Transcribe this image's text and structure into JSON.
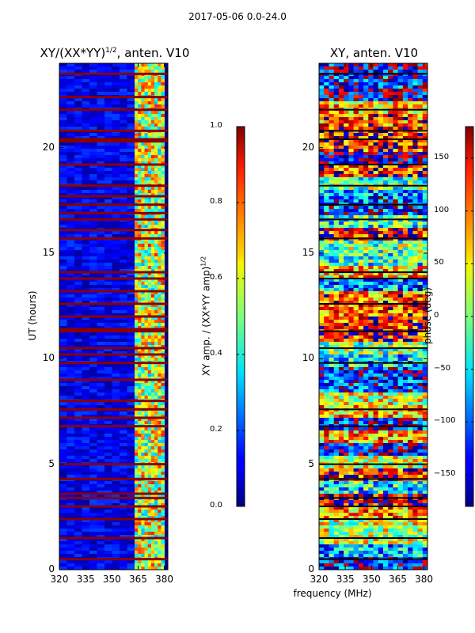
{
  "suptitle": "2017-05-06 0.0-24.0",
  "chart_data": [
    {
      "type": "heatmap",
      "title": "XY/(XX*YY)^1/2, anten. V10",
      "title_main": "XY/(XX*YY)",
      "title_sup": "1/2",
      "title_tail": ", anten. V10",
      "xlabel": "",
      "ylabel": "UT (hours)",
      "xlim": [
        320,
        382
      ],
      "ylim": [
        0,
        24
      ],
      "xticks": [
        "320",
        "335",
        "350",
        "365",
        "380"
      ],
      "xtick_values": [
        320,
        335,
        350,
        365,
        380
      ],
      "yticks": [
        "0",
        "5",
        "10",
        "15",
        "20"
      ],
      "ytick_values": [
        0,
        5,
        10,
        15,
        20
      ],
      "colorbar": {
        "label": "XY amp. / (XX*YY amp)^1/2",
        "label_main": "XY amp. / (XX*YY amp)",
        "label_sup": "1/2",
        "range": [
          0.0,
          1.0
        ],
        "ticks": [
          "0.0",
          "0.2",
          "0.4",
          "0.6",
          "0.8",
          "1.0"
        ],
        "tick_values": [
          0.0,
          0.2,
          0.4,
          0.6,
          0.8,
          1.0
        ]
      },
      "flagged_hours": [
        0.5,
        1.5,
        2.4,
        3.0,
        3.4,
        3.6,
        4.3,
        5.0,
        6.8,
        7.2,
        7.6,
        8.0,
        9.0,
        9.8,
        10.2,
        10.5,
        11.3,
        11.4,
        12.0,
        12.6,
        13.2,
        13.8,
        14.1,
        15.7,
        16.1,
        16.6,
        16.9,
        17.3,
        17.7,
        18.2,
        19.2,
        20.3,
        20.4,
        20.8,
        21.8,
        22.4,
        23.5
      ],
      "bright_channel_band_mhz": [
        363,
        380
      ],
      "note": "low amplitude (~0.1) below 363 MHz, higher (~0.5-0.9) in 363-380 MHz band"
    },
    {
      "type": "heatmap",
      "title": "XY, anten. V10",
      "xlabel": "frequency (MHz)",
      "ylabel": "",
      "xlim": [
        320,
        382
      ],
      "ylim": [
        0,
        24
      ],
      "xticks": [
        "320",
        "335",
        "350",
        "365",
        "380"
      ],
      "xtick_values": [
        320,
        335,
        350,
        365,
        380
      ],
      "yticks": [
        "0",
        "5",
        "10",
        "15",
        "20"
      ],
      "ytick_values": [
        0,
        5,
        10,
        15,
        20
      ],
      "colorbar": {
        "label": "phase (deg)",
        "range": [
          -180,
          180
        ],
        "ticks": [
          "−150",
          "−100",
          "−50",
          "0",
          "50",
          "100",
          "150"
        ],
        "tick_values": [
          -150,
          -100,
          -50,
          0,
          50,
          100,
          150
        ]
      },
      "flagged_hours": [
        0.5,
        1.5,
        2.4,
        3.0,
        3.4,
        4.3,
        5.0,
        6.8,
        7.6,
        9.8,
        10.5,
        11.3,
        12.6,
        13.8,
        14.1,
        15.7,
        16.6,
        17.3,
        18.2,
        19.2,
        20.4,
        20.8,
        21.8,
        23.5
      ],
      "note": "phase varies widely across full range, horizontal banding in time"
    }
  ]
}
